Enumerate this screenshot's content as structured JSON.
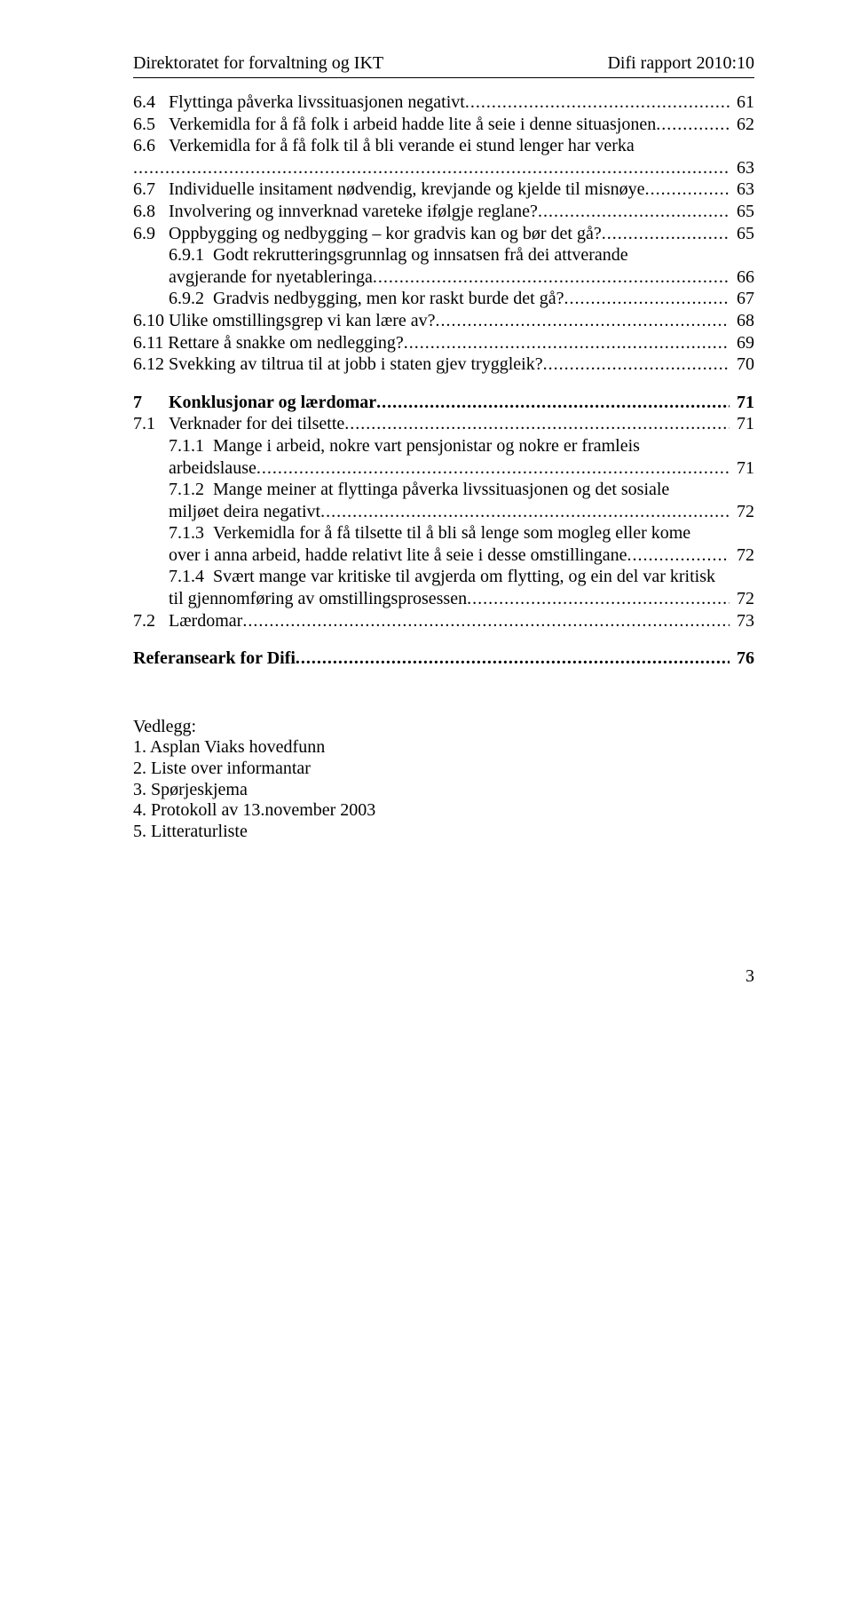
{
  "header": {
    "left": "Direktoratet for forvaltning og IKT",
    "right": "Difi rapport 2010:10"
  },
  "toc": [
    {
      "type": "row",
      "indent": 0,
      "label": "6.4",
      "text": "Flyttinga påverka livssituasjonen negativt",
      "page": "61"
    },
    {
      "type": "row",
      "indent": 0,
      "label": "6.5",
      "text": "Verkemidla for å få folk i arbeid hadde lite å seie i denne situasjonen",
      "page": "62"
    },
    {
      "type": "row-open",
      "indent": 0,
      "label": "6.6",
      "text": "Verkemidla for å få folk til å bli verande ei stund lenger har verka"
    },
    {
      "type": "row-close",
      "indent": 0,
      "page": "63"
    },
    {
      "type": "row",
      "indent": 0,
      "label": "6.7",
      "text": "Individuelle insitament nødvendig, krevjande og kjelde til misnøye",
      "page": "63"
    },
    {
      "type": "row",
      "indent": 0,
      "label": "6.8",
      "text": "Involvering og innverknad vareteke ifølgje reglane?",
      "page": "65"
    },
    {
      "type": "row",
      "indent": 0,
      "label": "6.9",
      "text": "Oppbygging og nedbygging – kor gradvis kan og bør det gå?",
      "page": "65"
    },
    {
      "type": "row-open",
      "indent": 1,
      "label": "6.9.1",
      "text": "Godt rekrutteringsgrunnlag og innsatsen frå dei attverande"
    },
    {
      "type": "row-close",
      "indent": 2,
      "contText": "avgjerande for nyetableringa",
      "page": "66"
    },
    {
      "type": "row",
      "indent": 1,
      "label": "6.9.2",
      "text": "Gradvis nedbygging, men kor raskt burde det gå?",
      "page": "67"
    },
    {
      "type": "row",
      "indent": 0,
      "label": "6.10",
      "text": "Ulike omstillingsgrep vi kan lære av?",
      "page": "68",
      "tightLabel": true
    },
    {
      "type": "row",
      "indent": 0,
      "label": "6.11",
      "text": "Rettare å snakke om nedlegging?",
      "page": "69",
      "tightLabel": true
    },
    {
      "type": "row",
      "indent": 0,
      "label": "6.12",
      "text": "Svekking av tiltrua til at jobb i staten gjev tryggleik?",
      "page": "70",
      "tightLabel": true
    },
    {
      "type": "gap",
      "size": "med"
    },
    {
      "type": "row",
      "indent": 0,
      "label": "7",
      "text": "Konklusjonar og lærdomar",
      "page": "71",
      "bold": true,
      "widepad": true
    },
    {
      "type": "row",
      "indent": 0,
      "label": "7.1",
      "text": "Verknader for dei tilsette",
      "page": "71"
    },
    {
      "type": "row-open",
      "indent": 1,
      "label": "7.1.1",
      "text": "Mange i arbeid, nokre vart pensjonistar og nokre er framleis"
    },
    {
      "type": "row-close",
      "indent": 2,
      "contText": "arbeidslause",
      "page": "71"
    },
    {
      "type": "row-open",
      "indent": 1,
      "label": "7.1.2",
      "text": "Mange meiner at flyttinga påverka livssituasjonen og det sosiale"
    },
    {
      "type": "row-close",
      "indent": 2,
      "contText": "miljøet deira negativt",
      "page": "72"
    },
    {
      "type": "row-open",
      "indent": 1,
      "label": "7.1.3",
      "text": "Verkemidla for å få tilsette til å bli så lenge som mogleg eller kome"
    },
    {
      "type": "row-close",
      "indent": 2,
      "contText": "over i anna arbeid, hadde relativt lite å seie i desse omstillingane",
      "page": "72"
    },
    {
      "type": "row-open",
      "indent": 1,
      "label": "7.1.4",
      "text": "Svært mange var kritiske til avgjerda om flytting, og ein del var kritisk"
    },
    {
      "type": "row-close",
      "indent": 2,
      "contText": "til gjennomføring av omstillingsprosessen",
      "page": "72"
    },
    {
      "type": "row",
      "indent": 0,
      "label": "7.2",
      "text": "Lærdomar",
      "page": "73"
    },
    {
      "type": "gap",
      "size": "med"
    },
    {
      "type": "row",
      "indent": 0,
      "label": "",
      "text": "Referanseark for Difi",
      "page": "76",
      "bold": true
    }
  ],
  "appendix": {
    "heading": "Vedlegg:",
    "items": [
      "1. Asplan Viaks hovedfunn",
      "2. Liste over informantar",
      "3. Spørjeskjema",
      "4. Protokoll av 13.november 2003",
      "5. Litteraturliste"
    ]
  },
  "pageNumber": "3",
  "style": {
    "font_family": "Times New Roman",
    "base_font_size_pt": 15,
    "text_color": "#000000",
    "background_color": "#ffffff",
    "leader_char": "."
  }
}
